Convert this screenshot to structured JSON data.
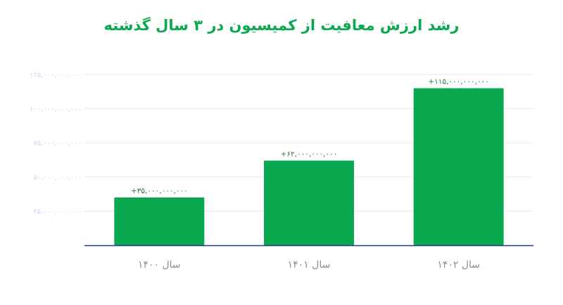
{
  "chart_data": {
    "type": "bar",
    "title": "رشد ارزش معافیت از کمیسیون در ۳ سال گذشته",
    "xlabel": "",
    "ylabel": "",
    "categories": [
      "سال ۱۴۰۰",
      "سال ۱۴۰۱",
      "سال ۱۴۰۲"
    ],
    "values": [
      35000000000,
      62000000000,
      115000000000
    ],
    "data_labels": [
      "+۳۵,۰۰۰,۰۰۰,۰۰۰",
      "+۶۲,۰۰۰,۰۰۰,۰۰۰",
      "+۱۱۵,۰۰۰,۰۰۰,۰۰۰"
    ],
    "y_ticks": [
      25000000000,
      50000000000,
      75000000000,
      100000000000,
      125000000000
    ],
    "y_tick_labels": [
      "۲۵,۰۰۰,۰۰۰,۰۰۰",
      "۵۰,۰۰۰,۰۰۰,۰۰۰",
      "۷۵,۰۰۰,۰۰۰,۰۰۰",
      "۱۰۰,۰۰۰,۰۰۰,۰۰۰",
      "۱۲۵,۰۰۰,۰۰۰,۰۰۰"
    ],
    "ylim": [
      0,
      125000000000
    ],
    "grid": true,
    "legend": "none"
  },
  "colors": {
    "title": "#0aa84f",
    "bar": "#0aa84f",
    "axis": "#1f3f8a",
    "grid": "#e6ebf2"
  }
}
